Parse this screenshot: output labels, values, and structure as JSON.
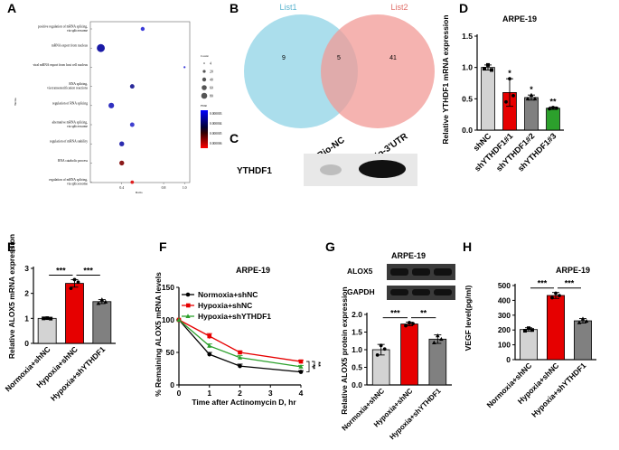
{
  "panel_labels": [
    "A",
    "B",
    "C",
    "D",
    "E",
    "F",
    "G",
    "H"
  ],
  "colors": {
    "shnc": "#d3d3d3",
    "red": "#e60000",
    "gray": "#808080",
    "green": "#2ca02c",
    "sky": "#8fd3e6",
    "pink": "#f29a96"
  },
  "chart_data": [
    {
      "panel": "A",
      "type": "scatter",
      "title": "",
      "xlabel": "Ratio",
      "ylabel": "Terms",
      "categories": [
        "positive regulation of mRNA splicing, via spliceosome",
        "mRNA export from nucleus",
        "viral mRNA export from host cell nucleus",
        "RNA splicing, via transesterification reactions",
        "regulation of RNA splicing",
        "alternative mRNA splicing, via spliceosome",
        "regulation of mRNA stability",
        "RNA catabolic process",
        "regulation of mRNA splicing, via spliceosome"
      ],
      "x": [
        0.6,
        0.2,
        1.0,
        0.5,
        0.3,
        0.5,
        0.4,
        0.4,
        0.5
      ],
      "size": [
        4,
        16,
        1,
        5,
        8,
        5,
        6,
        6,
        3
      ],
      "xlim": [
        0.1,
        1.05
      ],
      "xticks": [
        "0.4",
        "0.8",
        "1.0"
      ],
      "legend_count_title": "Count",
      "legend_count_values": [
        "4",
        "20",
        "40",
        "60",
        "80"
      ],
      "legend_fdr_title": "FDR",
      "legend_fdr_values": [
        "0.000003",
        "0.000004",
        "0.000005",
        "0.000006"
      ]
    },
    {
      "panel": "B",
      "type": "venn",
      "title": "",
      "set_labels": [
        "List1",
        "List2"
      ],
      "only_left": 9,
      "overlap": 5,
      "only_right": 41
    },
    {
      "panel": "C",
      "type": "blot",
      "lanes": [
        "Bio-NC",
        "Bio-3'UTR"
      ],
      "row_label": "YTHDF1"
    },
    {
      "panel": "D",
      "type": "bar",
      "title": "ARPE-19",
      "ylabel": "Relative YTHDF1 mRNA expression",
      "categories": [
        "shNC",
        "shYTHDF1#1",
        "shYTHDF1#2",
        "shYTHDF1#3"
      ],
      "values": [
        1.0,
        0.6,
        0.52,
        0.35
      ],
      "errors": [
        0.04,
        0.22,
        0.04,
        0.02
      ],
      "points": [
        [
          0.98,
          1.04,
          0.96
        ],
        [
          0.45,
          0.82,
          0.55
        ],
        [
          0.5,
          0.56,
          0.5
        ],
        [
          0.34,
          0.36,
          0.35
        ]
      ],
      "sig": [
        "",
        "*",
        "*",
        "**"
      ],
      "ylim": [
        0,
        1.5
      ],
      "yticks": [
        "0.0",
        "0.5",
        "1.0",
        "1.5"
      ]
    },
    {
      "panel": "E",
      "type": "bar",
      "title": "",
      "ylabel": "Relative ALOX5 mRNA expression",
      "categories": [
        "Normoxia+shNC",
        "Hypoxia+shNC",
        "Hypoxia+shYTHDF1"
      ],
      "values": [
        1.0,
        2.4,
        1.67
      ],
      "errors": [
        0.02,
        0.15,
        0.08
      ],
      "points": [
        [
          1.0,
          1.01,
          0.99
        ],
        [
          2.2,
          2.55,
          2.45
        ],
        [
          1.6,
          1.75,
          1.66
        ]
      ],
      "ylim": [
        0,
        3
      ],
      "yticks": [
        "0",
        "1",
        "2",
        "3"
      ],
      "brackets": [
        "***",
        "***"
      ]
    },
    {
      "panel": "F",
      "type": "line",
      "title": "ARPE-19",
      "xlabel": "Time after Actinomycin D, hr",
      "ylabel": "% Remaining ALOX5 mRNA levels",
      "x": [
        0,
        1,
        2,
        4
      ],
      "series": [
        {
          "name": "Normoxia+shNC",
          "values": [
            100,
            47,
            29,
            20
          ],
          "errors": [
            0,
            3,
            3,
            2
          ]
        },
        {
          "name": "Hypoxia+shNC",
          "values": [
            100,
            75,
            50,
            36
          ],
          "errors": [
            0,
            4,
            2,
            2
          ]
        },
        {
          "name": "Hypoxia+shYTHDF1",
          "values": [
            100,
            60,
            42,
            28
          ],
          "errors": [
            0,
            3,
            3,
            2
          ]
        }
      ],
      "ylim": [
        0,
        150
      ],
      "yticks": [
        "0",
        "50",
        "100",
        "150"
      ],
      "xticks": [
        "0",
        "1",
        "2",
        "3",
        "4"
      ],
      "sig": [
        "**",
        "**"
      ]
    },
    {
      "panel": "G",
      "type": "bar",
      "title": "ARPE-19",
      "blot_rows": [
        "ALOX5",
        "GAPDH"
      ],
      "ylabel": "Relative ALOX5 protein expression",
      "categories": [
        "Normoxia+shNC",
        "Hypoxia+shNC",
        "Hypoxia+shYTHDF1"
      ],
      "values": [
        1.0,
        1.73,
        1.3
      ],
      "errors": [
        0.15,
        0.05,
        0.12
      ],
      "points": [
        [
          0.85,
          1.12,
          1.02
        ],
        [
          1.68,
          1.77,
          1.74
        ],
        [
          1.2,
          1.4,
          1.3
        ]
      ],
      "ylim": [
        0,
        2.0
      ],
      "yticks": [
        "0.0",
        "0.5",
        "1.0",
        "1.5",
        "2.0"
      ],
      "brackets": [
        "***",
        "**"
      ]
    },
    {
      "panel": "H",
      "type": "bar",
      "title": "ARPE-19",
      "ylabel": "VEGF level(pg/ml)",
      "categories": [
        "Normoxia+shNC",
        "Hypoxia+shNC",
        "Hypoxia+shYTHDF1"
      ],
      "values": [
        203,
        433,
        262
      ],
      "errors": [
        12,
        20,
        15
      ],
      "points": [
        [
          195,
          212,
          200
        ],
        [
          418,
          448,
          432
        ],
        [
          250,
          276,
          260
        ]
      ],
      "ylim": [
        0,
        500
      ],
      "yticks": [
        "0",
        "100",
        "200",
        "300",
        "400",
        "500"
      ],
      "brackets": [
        "***",
        "***"
      ]
    }
  ]
}
